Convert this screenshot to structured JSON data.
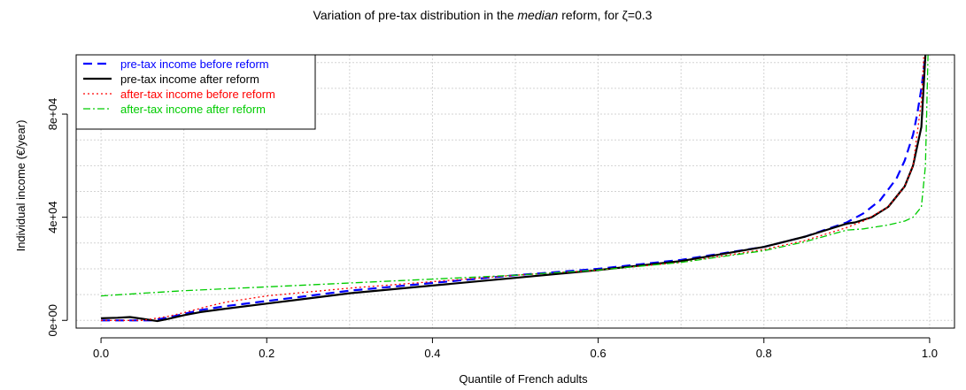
{
  "chart_data": {
    "type": "line",
    "title_parts": {
      "prefix": "Variation of pre-tax distribution in the ",
      "emph": "median",
      "suffix": " reform, for ζ=0.3"
    },
    "xlabel": "Quantile of French adults",
    "ylabel": "Individual income (€/year)",
    "xlim": [
      -0.03,
      1.03
    ],
    "ylim": [
      -3000,
      103000
    ],
    "x_ticks": [
      0.0,
      0.2,
      0.4,
      0.6,
      0.8,
      1.0
    ],
    "x_tick_labels": [
      "0.0",
      "0.2",
      "0.4",
      "0.6",
      "0.8",
      "1.0"
    ],
    "y_ticks": [
      0,
      40000,
      80000
    ],
    "y_tick_labels": [
      "0e+00",
      "4e+04",
      "8e+04"
    ],
    "grid_x": [
      0.0,
      0.1,
      0.2,
      0.3,
      0.4,
      0.5,
      0.6,
      0.7,
      0.8,
      0.9,
      1.0
    ],
    "grid_y": [
      0,
      10000,
      20000,
      30000,
      40000,
      50000,
      60000,
      70000,
      80000,
      90000,
      100000
    ],
    "grid": true,
    "legend_position": "top-left",
    "series": [
      {
        "name": "pre-tax income before reform",
        "color": "#0000ff",
        "dash": "10,6",
        "width": 2.2,
        "x": [
          0.0,
          0.02,
          0.04,
          0.06,
          0.08,
          0.1,
          0.12,
          0.15,
          0.2,
          0.25,
          0.3,
          0.4,
          0.5,
          0.6,
          0.7,
          0.8,
          0.85,
          0.9,
          0.92,
          0.94,
          0.96,
          0.97,
          0.98,
          0.985,
          0.99,
          0.995
        ],
        "y": [
          0,
          0,
          0,
          0,
          1000,
          2500,
          4000,
          5500,
          7500,
          9500,
          11500,
          14500,
          17500,
          20000,
          23500,
          28500,
          32500,
          38000,
          41500,
          46500,
          55000,
          62000,
          72000,
          80000,
          90000,
          103000
        ]
      },
      {
        "name": "pre-tax income after reform",
        "color": "#000000",
        "dash": "",
        "width": 2.2,
        "x": [
          0.0,
          0.02,
          0.035,
          0.05,
          0.068,
          0.08,
          0.1,
          0.12,
          0.15,
          0.2,
          0.25,
          0.3,
          0.4,
          0.5,
          0.6,
          0.7,
          0.8,
          0.85,
          0.9,
          0.91,
          0.93,
          0.95,
          0.97,
          0.98,
          0.99,
          0.995
        ],
        "y": [
          800,
          1000,
          1300,
          600,
          -300,
          500,
          2000,
          3200,
          4500,
          6500,
          8500,
          10500,
          13500,
          16500,
          19500,
          23000,
          28500,
          32500,
          37500,
          38000,
          40000,
          44000,
          52000,
          60000,
          75000,
          103000
        ]
      },
      {
        "name": "after-tax income before reform",
        "color": "#ff0000",
        "dash": "2,3",
        "width": 1.3,
        "x": [
          0.0,
          0.05,
          0.08,
          0.1,
          0.13,
          0.15,
          0.2,
          0.25,
          0.3,
          0.4,
          0.5,
          0.6,
          0.7,
          0.8,
          0.85,
          0.9,
          0.92,
          0.95,
          0.97,
          0.98,
          0.99,
          0.993
        ],
        "y": [
          0,
          0,
          1500,
          3000,
          5500,
          7000,
          9500,
          11000,
          12500,
          15000,
          17500,
          19500,
          22500,
          27500,
          31000,
          36000,
          38500,
          44000,
          52000,
          60000,
          85000,
          103000
        ]
      },
      {
        "name": "after-tax income after reform",
        "color": "#00cc00",
        "dash": "8,3,2,3",
        "width": 1.3,
        "x": [
          0.0,
          0.05,
          0.1,
          0.2,
          0.3,
          0.4,
          0.5,
          0.6,
          0.7,
          0.8,
          0.85,
          0.9,
          0.92,
          0.95,
          0.97,
          0.98,
          0.99,
          0.995,
          0.998
        ],
        "y": [
          9500,
          10500,
          11500,
          13000,
          14500,
          16000,
          17500,
          19500,
          22500,
          27000,
          30500,
          35000,
          35500,
          37000,
          38500,
          40000,
          44000,
          60000,
          103000
        ]
      }
    ]
  }
}
